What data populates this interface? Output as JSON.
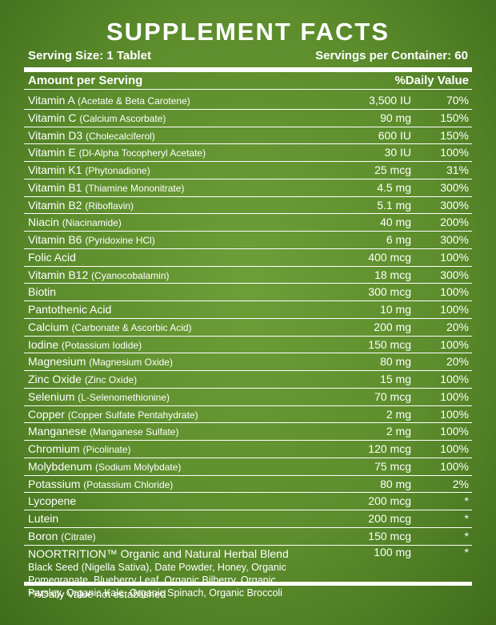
{
  "header": {
    "title": "SUPPLEMENT FACTS",
    "serving_size": "Serving Size: 1 Tablet",
    "servings_per_container": "Servings per Container: 60"
  },
  "columns": {
    "amount": "Amount per Serving",
    "daily_value": "%Daily Value"
  },
  "rows": [
    {
      "name": "Vitamin A",
      "detail": "(Acetate & Beta Carotene)",
      "amount": "3,500 IU",
      "dv": "70%"
    },
    {
      "name": "Vitamin C",
      "detail": "(Calcium Ascorbate)",
      "amount": "90 mg",
      "dv": "150%"
    },
    {
      "name": "Vitamin D3",
      "detail": "(Cholecalciferol)",
      "amount": "600 IU",
      "dv": "150%"
    },
    {
      "name": "Vitamin E",
      "detail": "(Dl-Alpha Tocopheryl Acetate)",
      "amount": "30 IU",
      "dv": "100%"
    },
    {
      "name": "Vitamin K1",
      "detail": "(Phytonadione)",
      "amount": "25 mcg",
      "dv": "31%"
    },
    {
      "name": "Vitamin B1",
      "detail": "(Thiamine Mononitrate)",
      "amount": "4.5 mg",
      "dv": "300%"
    },
    {
      "name": "Vitamin B2",
      "detail": "(Riboflavin)",
      "amount": "5.1 mg",
      "dv": "300%"
    },
    {
      "name": "Niacin",
      "detail": "(Niacinamide)",
      "amount": "40 mg",
      "dv": "200%"
    },
    {
      "name": "Vitamin B6",
      "detail": "(Pyridoxine HCl)",
      "amount": "6 mg",
      "dv": "300%"
    },
    {
      "name": "Folic Acid",
      "amount": "400 mcg",
      "dv": "100%"
    },
    {
      "name": "Vitamin B12",
      "detail": "(Cyanocobalamin)",
      "amount": "18 mcg",
      "dv": "300%"
    },
    {
      "name": "Biotin",
      "amount": "300 mcg",
      "dv": "100%"
    },
    {
      "name": "Pantothenic Acid",
      "amount": "10 mg",
      "dv": "100%"
    },
    {
      "name": "Calcium",
      "detail": "(Carbonate & Ascorbic Acid)",
      "amount": "200 mg",
      "dv": "20%"
    },
    {
      "name": "Iodine",
      "detail": "(Potassium Iodide)",
      "amount": "150 mcg",
      "dv": "100%"
    },
    {
      "name": "Magnesium",
      "detail": "(Magnesium Oxide)",
      "amount": "80 mg",
      "dv": "20%"
    },
    {
      "name": "Zinc Oxide",
      "detail": "(Zinc Oxide)",
      "amount": "15 mg",
      "dv": "100%"
    },
    {
      "name": "Selenium",
      "detail": "(L-Selenomethionine)",
      "amount": "70 mcg",
      "dv": "100%"
    },
    {
      "name": "Copper",
      "detail": "(Copper Sulfate Pentahydrate)",
      "amount": "2 mg",
      "dv": "100%"
    },
    {
      "name": "Manganese",
      "detail": "(Manganese Sulfate)",
      "amount": "2 mg",
      "dv": "100%"
    },
    {
      "name": "Chromium",
      "detail": "(Picolinate)",
      "amount": "120 mcg",
      "dv": "100%"
    },
    {
      "name": "Molybdenum",
      "detail": "(Sodium Molybdate)",
      "amount": "75 mcg",
      "dv": "100%"
    },
    {
      "name": "Potassium",
      "detail": "(Potassium Chloride)",
      "amount": "80 mg",
      "dv": "2%"
    },
    {
      "name": "Lycopene",
      "amount": "200 mcg",
      "dv": "*"
    },
    {
      "name": "Lutein",
      "amount": "200 mcg",
      "dv": "*"
    },
    {
      "name": "Boron",
      "detail": "(Citrate)",
      "amount": "150 mcg",
      "dv": "*"
    }
  ],
  "blend": {
    "name": "NOORTRITION™ Organic and Natural Herbal Blend",
    "amount": "100 mg",
    "dv": "*",
    "description": [
      "Black Seed (Nigella Sativa), Date Powder, Honey, Organic",
      "Pomegranate, Blueberry Leaf, Organic Bilberry, Organic",
      "Parsley, Organic Kale, Organic Spinach, Organic Broccoli"
    ]
  },
  "footnote": "*%Daily Value not established"
}
